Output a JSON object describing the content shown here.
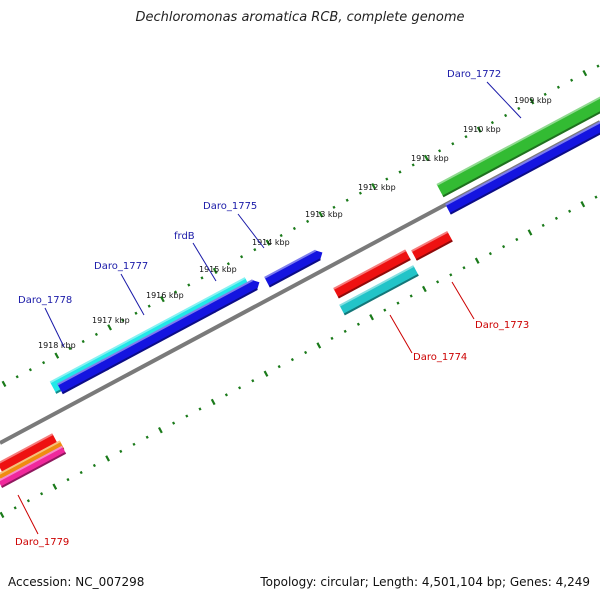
{
  "title": "Dechloromonas aromatica RCB, complete genome",
  "footer": {
    "accession": "Accession: NC_007298",
    "summary": "Topology: circular; Length: 4,501,104 bp; Genes: 4,249"
  },
  "colors": {
    "backbone": "#7a7a7a",
    "tick": "#1a7a1a",
    "forward_label": "#1a1aa8",
    "reverse_label": "#cc0000"
  },
  "kbp_ticks": [
    "1909 kbp",
    "1910 kbp",
    "1911 kbp",
    "1912 kbp",
    "1913 kbp",
    "1914 kbp",
    "1915 kbp",
    "1916 kbp",
    "1917 kbp",
    "1918 kbp"
  ],
  "gene_labels": {
    "forward": [
      "Daro_1772",
      "Daro_1775",
      "frdB",
      "Daro_1777",
      "Daro_1778"
    ],
    "reverse": [
      "Daro_1773",
      "Daro_1774",
      "Daro_1779"
    ]
  },
  "features": [
    {
      "name": "feat-green",
      "color": "#33bb33",
      "strand": "forward"
    },
    {
      "name": "feat-cyan",
      "color": "#22e8e8",
      "strand": "forward"
    },
    {
      "name": "feat-blue",
      "color": "#1414e0",
      "strand": "forward"
    },
    {
      "name": "feat-red",
      "color": "#ee1111",
      "strand": "reverse"
    },
    {
      "name": "feat-teal",
      "color": "#22c4c8",
      "strand": "reverse"
    },
    {
      "name": "feat-orange",
      "color": "#f08c10",
      "strand": "reverse"
    },
    {
      "name": "feat-magenta",
      "color": "#f0289c",
      "strand": "reverse"
    }
  ]
}
